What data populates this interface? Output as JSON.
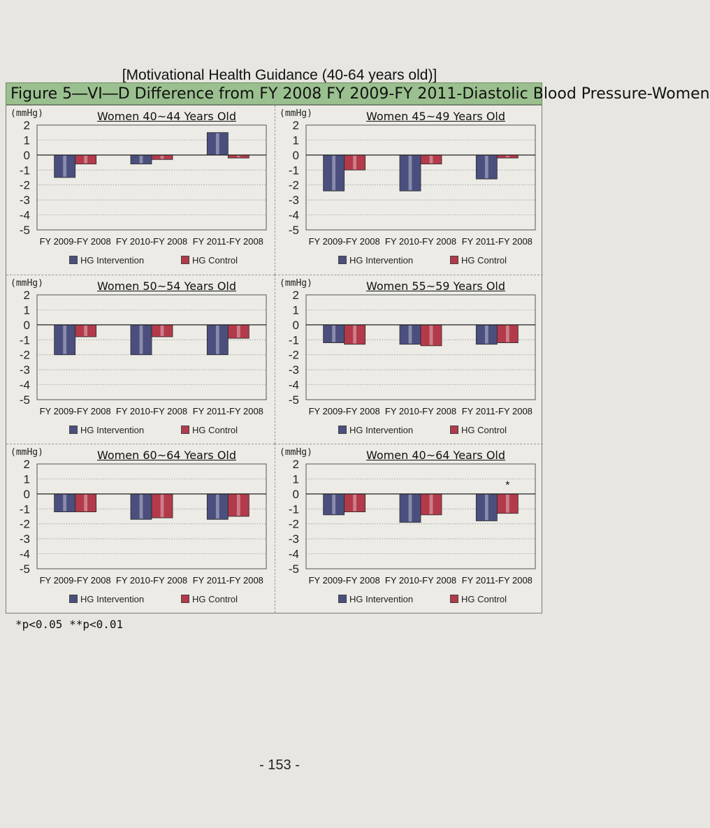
{
  "heading": "[Motivational Health Guidance (40-64 years old)]",
  "figure_title": "Figure 5―VI―D Difference from FY 2008 FY 2009-FY 2011-Diastolic Blood Pressure-Women",
  "footnote": "*p<0.05 **p<0.01",
  "page_number": "- 153 -",
  "colors": {
    "intervention": "#4b4f7e",
    "control": "#b23a4a",
    "title_bar": "#9bc08f"
  },
  "chart_data": [
    {
      "type": "bar",
      "title": "Women 40~44 Years Old",
      "unit": "(mmHg)",
      "categories": [
        "FY 2009-FY 2008",
        "FY 2010-FY 2008",
        "FY 2011-FY 2008"
      ],
      "series": [
        {
          "name": "HG Intervention",
          "values": [
            -1.5,
            -0.6,
            1.5
          ]
        },
        {
          "name": "HG Control",
          "values": [
            -0.6,
            -0.3,
            -0.2
          ]
        }
      ],
      "ylim": [
        -5,
        2
      ],
      "yticks": [
        "2",
        "1",
        "0",
        "-1",
        "-2",
        "-3",
        "-4",
        "-5"
      ],
      "annotations": []
    },
    {
      "type": "bar",
      "title": "Women 45~49 Years Old",
      "unit": "(mmHg)",
      "categories": [
        "FY 2009-FY 2008",
        "FY 2010-FY 2008",
        "FY 2011-FY 2008"
      ],
      "series": [
        {
          "name": "HG Intervention",
          "values": [
            -2.4,
            -2.4,
            -1.6
          ]
        },
        {
          "name": "HG Control",
          "values": [
            -1.0,
            -0.6,
            -0.2
          ]
        }
      ],
      "ylim": [
        -5,
        2
      ],
      "yticks": [
        "2",
        "1",
        "0",
        "-1",
        "-2",
        "-3",
        "-4",
        "-5"
      ],
      "annotations": []
    },
    {
      "type": "bar",
      "title": "Women 50~54 Years Old",
      "unit": "(mmHg)",
      "categories": [
        "FY 2009-FY 2008",
        "FY 2010-FY 2008",
        "FY 2011-FY 2008"
      ],
      "series": [
        {
          "name": "HG Intervention",
          "values": [
            -2.0,
            -2.0,
            -2.0
          ]
        },
        {
          "name": "HG Control",
          "values": [
            -0.8,
            -0.8,
            -0.9
          ]
        }
      ],
      "ylim": [
        -5,
        2
      ],
      "yticks": [
        "2",
        "1",
        "0",
        "-1",
        "-2",
        "-3",
        "-4",
        "-5"
      ],
      "annotations": []
    },
    {
      "type": "bar",
      "title": "Women 55~59 Years Old",
      "unit": "(mmHg)",
      "categories": [
        "FY 2009-FY 2008",
        "FY 2010-FY 2008",
        "FY 2011-FY 2008"
      ],
      "series": [
        {
          "name": "HG Intervention",
          "values": [
            -1.2,
            -1.3,
            -1.3
          ]
        },
        {
          "name": "HG Control",
          "values": [
            -1.3,
            -1.4,
            -1.2
          ]
        }
      ],
      "ylim": [
        -5,
        2
      ],
      "yticks": [
        "2",
        "1",
        "0",
        "-1",
        "-2",
        "-3",
        "-4",
        "-5"
      ],
      "annotations": []
    },
    {
      "type": "bar",
      "title": "Women 60~64 Years Old",
      "unit": "(mmHg)",
      "categories": [
        "FY 2009-FY 2008",
        "FY 2010-FY 2008",
        "FY 2011-FY 2008"
      ],
      "series": [
        {
          "name": "HG Intervention",
          "values": [
            -1.2,
            -1.7,
            -1.7
          ]
        },
        {
          "name": "HG Control",
          "values": [
            -1.2,
            -1.6,
            -1.5
          ]
        }
      ],
      "ylim": [
        -5,
        2
      ],
      "yticks": [
        "2",
        "1",
        "0",
        "-1",
        "-2",
        "-3",
        "-4",
        "-5"
      ],
      "annotations": []
    },
    {
      "type": "bar",
      "title": "Women 40~64 Years Old",
      "unit": "(mmHg)",
      "categories": [
        "FY 2009-FY 2008",
        "FY 2010-FY 2008",
        "FY 2011-FY 2008"
      ],
      "series": [
        {
          "name": "HG Intervention",
          "values": [
            -1.4,
            -1.9,
            -1.8
          ]
        },
        {
          "name": "HG Control",
          "values": [
            -1.2,
            -1.4,
            -1.3
          ]
        }
      ],
      "ylim": [
        -5,
        2
      ],
      "yticks": [
        "2",
        "1",
        "0",
        "-1",
        "-2",
        "-3",
        "-4",
        "-5"
      ],
      "annotations": [
        {
          "text": "*",
          "category": 2
        }
      ]
    }
  ]
}
